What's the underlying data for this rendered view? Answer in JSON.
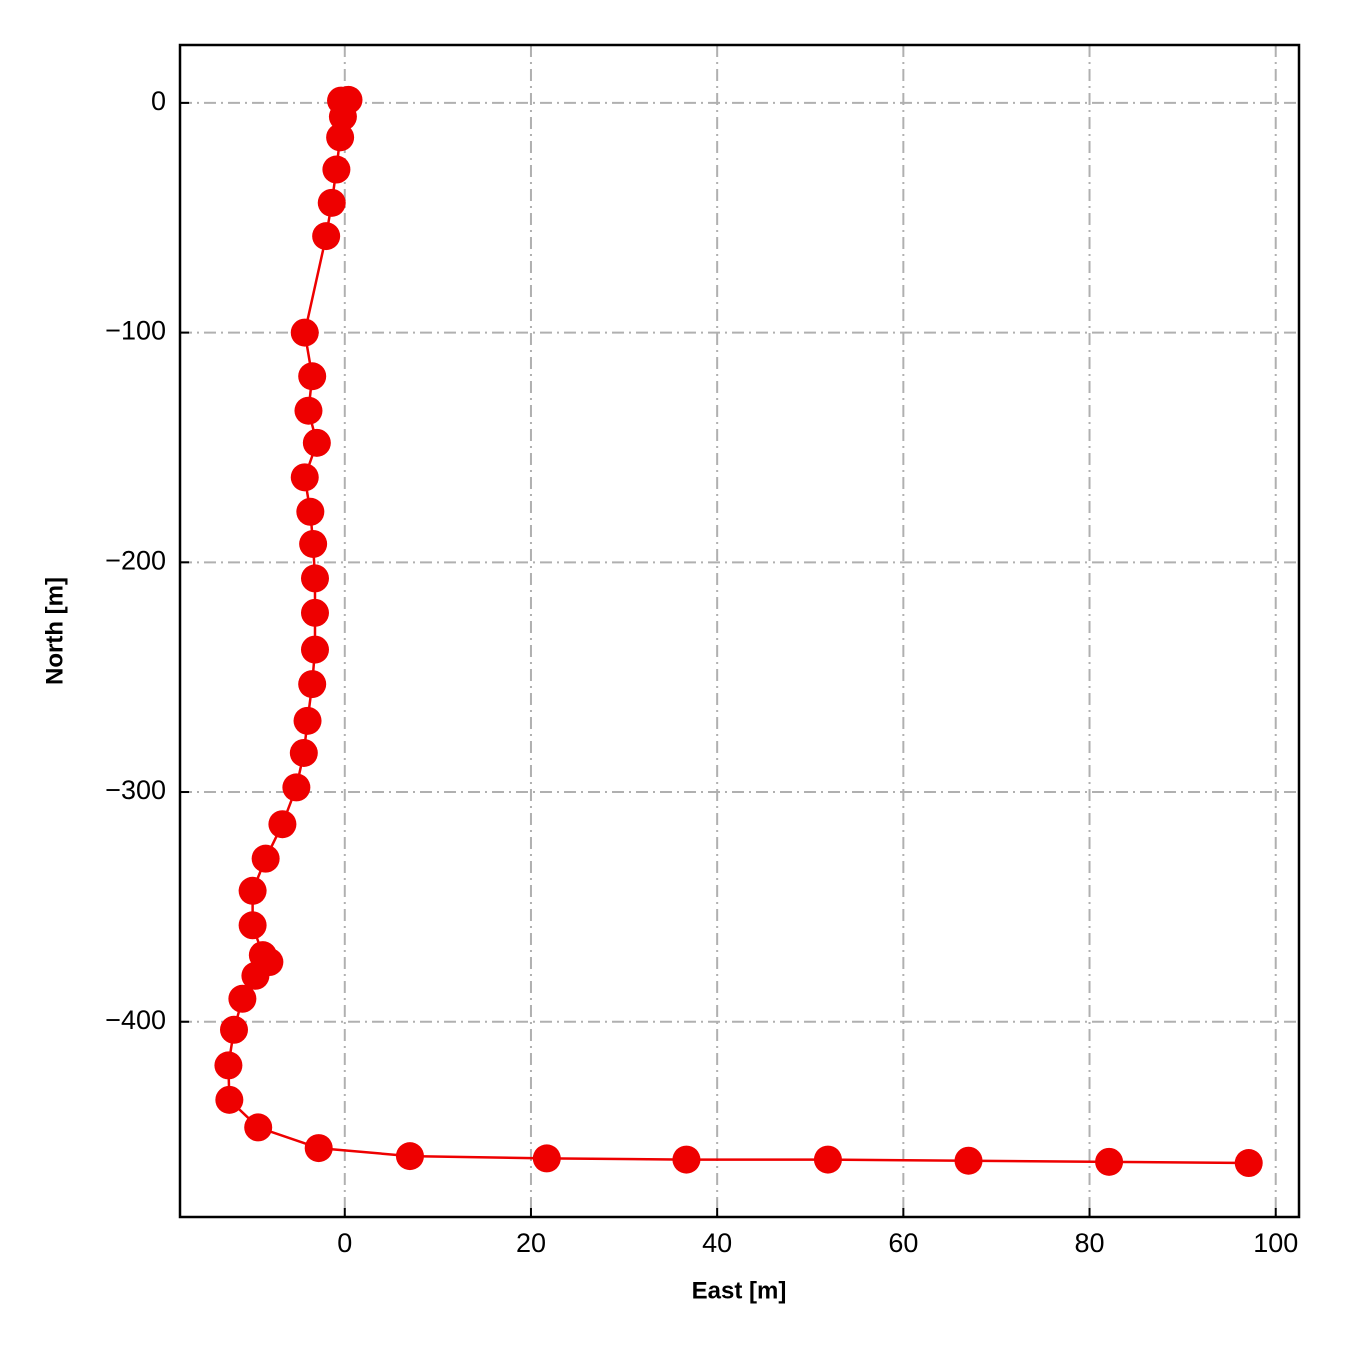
{
  "chart_data": {
    "type": "line",
    "x_label": "East [m]",
    "y_label": "North [m]",
    "x": [
      -0.4,
      0.4,
      -0.2,
      -0.5,
      -0.9,
      -1.4,
      -2.0,
      -4.3,
      -3.5,
      -3.9,
      -3.0,
      -4.3,
      -3.7,
      -3.4,
      -3.2,
      -3.2,
      -3.2,
      -3.5,
      -4.0,
      -4.4,
      -5.2,
      -6.7,
      -8.5,
      -9.9,
      -9.9,
      -8.8,
      -8.1,
      -9.6,
      -11.0,
      -11.9,
      -12.5,
      -12.4,
      -9.3,
      -2.8,
      7.0,
      21.7,
      36.7,
      51.9,
      67.0,
      82.1,
      97.1
    ],
    "series": [
      {
        "color": "#ee0000",
        "values": [
          1,
          1.3,
          -6,
          -15,
          -29,
          -43.5,
          -58,
          -100,
          -119,
          -134,
          -148,
          -163,
          -178,
          -192,
          -207,
          -222,
          -238,
          -253,
          -269,
          -283,
          -298,
          -314,
          -329,
          -343,
          -358,
          -371,
          -374,
          -380,
          -390,
          -403.5,
          -419,
          -434,
          -446,
          -455,
          -458.5,
          -459.5,
          -460,
          -460,
          -460.5,
          -461,
          -461.5
        ]
      }
    ],
    "xlim": [
      -17.7,
      102.5
    ],
    "ylim": [
      -485,
      25.2
    ],
    "xticks": [
      0,
      20,
      40,
      60,
      80,
      100
    ],
    "yticks": [
      0,
      {
        "value": -100,
        "label": "−100"
      },
      {
        "value": -200,
        "label": "−200"
      },
      {
        "value": -300,
        "label": "−300"
      },
      {
        "value": -400,
        "label": "−400"
      }
    ],
    "grid": true
  }
}
